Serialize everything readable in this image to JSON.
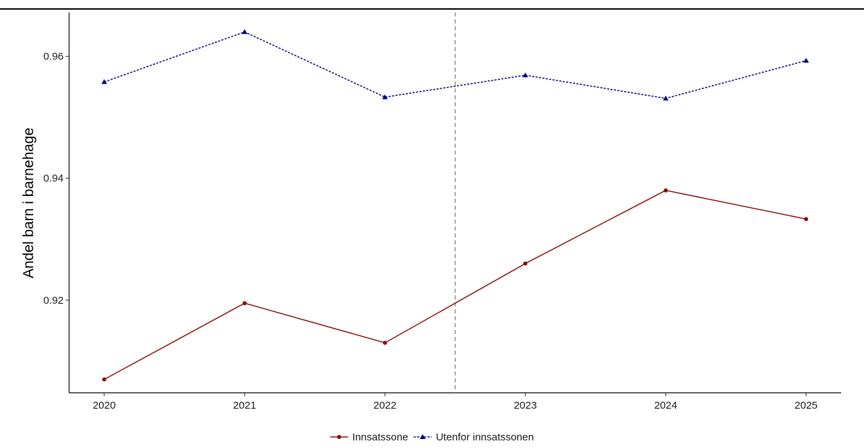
{
  "chart_data": {
    "type": "line",
    "title": "",
    "xlabel": "",
    "ylabel": "Andel barn i barnehage",
    "x": [
      2020,
      2021,
      2022,
      2023,
      2024,
      2025
    ],
    "x_tick_labels": [
      "2020",
      "2021",
      "2022",
      "2023",
      "2024",
      "2025"
    ],
    "ylim": [
      0.9048,
      0.9672
    ],
    "y_ticks": [
      0.92,
      0.94,
      0.96
    ],
    "y_tick_labels": [
      "0.92",
      "0.94",
      "0.96"
    ],
    "reference_line": {
      "x": 2022.5,
      "style": "dashed",
      "color": "#808080"
    },
    "grid": false,
    "legend_position": "bottom",
    "series": [
      {
        "name": "Innsatssone",
        "color": "#8b0f0f",
        "line_style": "solid",
        "marker": "circle",
        "values": [
          0.907,
          0.9195,
          0.913,
          0.926,
          0.938,
          0.9333
        ]
      },
      {
        "name": "Utenfor innsatssonen",
        "color": "#00007f",
        "line_style": "dotted",
        "marker": "triangle",
        "values": [
          0.9558,
          0.964,
          0.9533,
          0.9569,
          0.9531,
          0.9593
        ]
      }
    ]
  }
}
